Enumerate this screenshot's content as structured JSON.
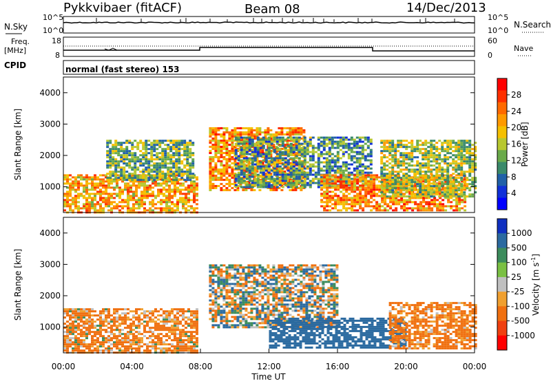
{
  "header": {
    "radar": "Pykkvibaer (fitACF)",
    "beam": "Beam 08",
    "date": "14/Dec/2013"
  },
  "noise_panel": {
    "left_label": "N.Sky",
    "right_label": "N.Search",
    "left_ticks": [
      "10^5",
      "10^0"
    ],
    "right_ticks": [
      "10^5",
      "10^0"
    ]
  },
  "freq_panel": {
    "left_label_top": "Freq.",
    "left_label_unit": "[MHz]",
    "right_label": "Nave",
    "left_ticks": [
      "18",
      "8"
    ],
    "right_ticks": [
      "60",
      "0"
    ]
  },
  "cpid": {
    "label": "CPID",
    "text": "normal (fast stereo) 153"
  },
  "chart_data": [
    {
      "type": "heatmap",
      "name": "power",
      "ylabel": "Slant Range [km]",
      "yticks": [
        "4000",
        "3000",
        "2000",
        "1000"
      ],
      "ylim": [
        180,
        4500
      ],
      "xlim": [
        "00:00",
        "24:00"
      ],
      "colorbar_label": "Power [dB]",
      "colorbar_ticks": [
        "28",
        "24",
        "20",
        "16",
        "12",
        "8",
        "4"
      ],
      "colorbar_colors": [
        "#ff0000",
        "#ff3000",
        "#ff6a00",
        "#ff9a00",
        "#f5c000",
        "#b8c830",
        "#6aaa4a",
        "#3a8a6a",
        "#2060a8",
        "#1030d8",
        "#0000ff"
      ],
      "regions": [
        {
          "t": [
            0.0,
            7.8
          ],
          "r": [
            200,
            1400
          ],
          "level": 20
        },
        {
          "t": [
            2.5,
            7.5
          ],
          "r": [
            1200,
            2500
          ],
          "level": 12
        },
        {
          "t": [
            8.5,
            14.0
          ],
          "r": [
            900,
            2900
          ],
          "level": 22
        },
        {
          "t": [
            10.0,
            18.0
          ],
          "r": [
            1000,
            2600
          ],
          "level": 10
        },
        {
          "t": [
            15.0,
            23.5
          ],
          "r": [
            250,
            1400
          ],
          "level": 22
        },
        {
          "t": [
            18.5,
            24.0
          ],
          "r": [
            700,
            2500
          ],
          "level": 14
        }
      ]
    },
    {
      "type": "heatmap",
      "name": "velocity",
      "ylabel": "Slant Range [km]",
      "yticks": [
        "4000",
        "3000",
        "2000",
        "1000"
      ],
      "ylim": [
        180,
        4500
      ],
      "xlim": [
        "00:00",
        "24:00"
      ],
      "xlabel": "Time UT",
      "xticks": [
        "00:00",
        "04:00",
        "08:00",
        "12:00",
        "16:00",
        "20:00",
        "00:00"
      ],
      "colorbar_label": "Velocity [m s",
      "colorbar_label_sup": "-1",
      "colorbar_label_end": "]",
      "colorbar_ticks": [
        "1000",
        "500",
        "100",
        "25",
        "-25",
        "-100",
        "-500",
        "-1000"
      ],
      "colorbar_colors": [
        "#1030c0",
        "#2b6aa0",
        "#3c8c5c",
        "#7ac043",
        "#c0c0c0",
        "#f0a030",
        "#f07010",
        "#f04010",
        "#ff0000"
      ],
      "regions": [
        {
          "t": [
            0.0,
            7.8
          ],
          "r": [
            200,
            1600
          ],
          "level": -150
        },
        {
          "t": [
            8.5,
            16.0
          ],
          "r": [
            1000,
            3000
          ],
          "level": 0
        },
        {
          "t": [
            12.0,
            20.0
          ],
          "r": [
            350,
            1300
          ],
          "level": 300
        },
        {
          "t": [
            19.0,
            24.0
          ],
          "r": [
            300,
            1800
          ],
          "level": -200
        }
      ]
    }
  ]
}
